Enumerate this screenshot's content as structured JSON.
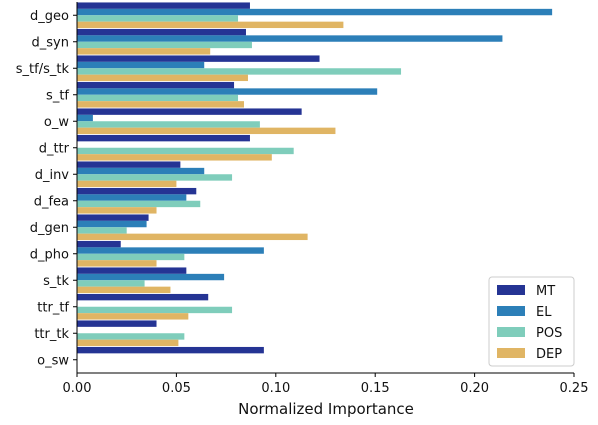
{
  "chart_data": {
    "type": "bar",
    "orientation": "horizontal",
    "xlabel": "Normalized Importance",
    "ylabel": "",
    "title": "",
    "xlim": [
      0.0,
      0.25
    ],
    "xticks": [
      "0.00",
      "0.05",
      "0.10",
      "0.15",
      "0.20",
      "0.25"
    ],
    "categories": [
      "d_geo",
      "d_syn",
      "s_tf/s_tk",
      "s_tf",
      "o_w",
      "d_ttr",
      "d_inv",
      "d_fea",
      "d_gen",
      "d_pho",
      "s_tk",
      "ttr_tf",
      "ttr_tk",
      "o_sw"
    ],
    "series": [
      {
        "name": "MT",
        "color": "#253494",
        "values": [
          0.087,
          0.085,
          0.122,
          0.079,
          0.113,
          0.087,
          0.052,
          0.06,
          0.036,
          0.022,
          0.055,
          0.066,
          0.04,
          0.094
        ]
      },
      {
        "name": "EL",
        "color": "#2c7fb8",
        "values": [
          0.239,
          0.214,
          0.064,
          0.151,
          0.008,
          0.0,
          0.064,
          0.055,
          0.035,
          0.094,
          0.074,
          0.0,
          0.0,
          0.0
        ]
      },
      {
        "name": "POS",
        "color": "#7fcdbb",
        "values": [
          0.081,
          0.088,
          0.163,
          0.081,
          0.092,
          0.109,
          0.078,
          0.062,
          0.025,
          0.054,
          0.034,
          0.078,
          0.054,
          0.0
        ]
      },
      {
        "name": "DEP",
        "color": "#e0b564",
        "values": [
          0.134,
          0.067,
          0.086,
          0.084,
          0.13,
          0.098,
          0.05,
          0.04,
          0.116,
          0.04,
          0.047,
          0.056,
          0.051,
          0.0
        ]
      }
    ],
    "legend": {
      "position": "bottom-right"
    },
    "grid": false
  }
}
